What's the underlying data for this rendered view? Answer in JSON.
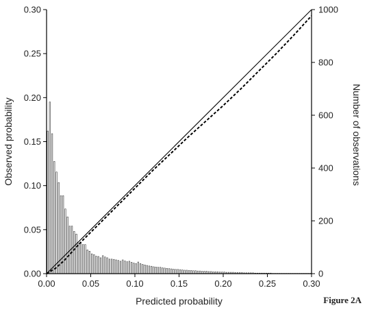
{
  "figure_label": "Figure 2A",
  "chart_data": {
    "type": "line",
    "title": "",
    "xlabel": "Predicted probability",
    "ylabel": "Observed probability",
    "y2label": "Number of observations",
    "xlim": [
      0,
      0.3
    ],
    "ylim": [
      0,
      0.3
    ],
    "y2lim": [
      0,
      1000
    ],
    "xticks": [
      0.0,
      0.05,
      0.1,
      0.15,
      0.2,
      0.25,
      0.3
    ],
    "xtick_labels": [
      "0.00",
      "0.05",
      "0.10",
      "0.15",
      "0.20",
      "0.25",
      "0.30"
    ],
    "yticks": [
      0.0,
      0.05,
      0.1,
      0.15,
      0.2,
      0.25,
      0.3
    ],
    "ytick_labels": [
      "0.00",
      "0.05",
      "0.10",
      "0.15",
      "0.20",
      "0.25",
      "0.30"
    ],
    "y2ticks": [
      0,
      200,
      400,
      600,
      800,
      1000
    ],
    "y2tick_labels": [
      "0",
      "200",
      "400",
      "600",
      "800",
      "1000"
    ],
    "grid": false,
    "legend": "none",
    "series": [
      {
        "style": "solid",
        "axis": "left",
        "x": [
          0.0,
          0.3
        ],
        "y": [
          0.0,
          0.3
        ]
      },
      {
        "style": "dashed",
        "axis": "left",
        "x": [
          0.0,
          0.01,
          0.02,
          0.03,
          0.04,
          0.05,
          0.06,
          0.08,
          0.1,
          0.12,
          0.14,
          0.16,
          0.18,
          0.2,
          0.22,
          0.24,
          0.26,
          0.28,
          0.3
        ],
        "y": [
          0.0,
          0.006,
          0.015,
          0.026,
          0.037,
          0.047,
          0.057,
          0.077,
          0.097,
          0.117,
          0.136,
          0.155,
          0.173,
          0.191,
          0.21,
          0.23,
          0.25,
          0.271,
          0.293
        ]
      }
    ],
    "histogram": {
      "axis": "right",
      "bin_width": 0.0025,
      "bin_starts": [
        0.0,
        0.0025,
        0.005,
        0.0075,
        0.01,
        0.0125,
        0.015,
        0.0175,
        0.02,
        0.0225,
        0.025,
        0.0275,
        0.03,
        0.0325,
        0.035,
        0.0375,
        0.04,
        0.0425,
        0.045,
        0.0475,
        0.05,
        0.0525,
        0.055,
        0.0575,
        0.06,
        0.0625,
        0.065,
        0.0675,
        0.07,
        0.0725,
        0.075,
        0.0775,
        0.08,
        0.0825,
        0.085,
        0.0875,
        0.09,
        0.0925,
        0.095,
        0.0975,
        0.1,
        0.1025,
        0.105,
        0.1075,
        0.11,
        0.1125,
        0.115,
        0.1175,
        0.12,
        0.1225,
        0.125,
        0.1275,
        0.13,
        0.1325,
        0.135,
        0.1375,
        0.14,
        0.1425,
        0.145,
        0.1475,
        0.15,
        0.1525,
        0.155,
        0.1575,
        0.16,
        0.1625,
        0.165,
        0.1675,
        0.17,
        0.1725,
        0.175,
        0.1775,
        0.18,
        0.1825,
        0.185,
        0.1875,
        0.19,
        0.1925,
        0.195,
        0.1975,
        0.2,
        0.2025,
        0.205,
        0.2075,
        0.21,
        0.2125,
        0.215,
        0.2175,
        0.22,
        0.2225,
        0.225,
        0.2275,
        0.23,
        0.2325,
        0.235,
        0.2375,
        0.24,
        0.2425,
        0.245,
        0.2475,
        0.25,
        0.2525,
        0.255,
        0.2575,
        0.26,
        0.2625,
        0.265,
        0.2675,
        0.27,
        0.2725,
        0.275,
        0.2775,
        0.28,
        0.2825,
        0.285,
        0.2875,
        0.29,
        0.2925,
        0.295,
        0.2975
      ],
      "counts": [
        540,
        650,
        530,
        425,
        385,
        345,
        295,
        295,
        245,
        215,
        180,
        180,
        160,
        150,
        115,
        115,
        110,
        110,
        90,
        85,
        75,
        72,
        66,
        65,
        60,
        68,
        63,
        60,
        55,
        55,
        54,
        52,
        50,
        47,
        52,
        48,
        45,
        47,
        43,
        40,
        38,
        44,
        38,
        35,
        33,
        31,
        29,
        28,
        26,
        25,
        24,
        24,
        22,
        21,
        20,
        19,
        18,
        17,
        16,
        16,
        15,
        14,
        13,
        13,
        12,
        12,
        11,
        11,
        10,
        10,
        9,
        9,
        9,
        8,
        8,
        7,
        7,
        7,
        6,
        6,
        6,
        5,
        5,
        5,
        5,
        4,
        4,
        4,
        4,
        3,
        3,
        3,
        3,
        3,
        2,
        2,
        2,
        2,
        2,
        2,
        2,
        2,
        1,
        1,
        1,
        1,
        1,
        1,
        1,
        1,
        1,
        1,
        1,
        1,
        1,
        1,
        1,
        1,
        1,
        1
      ]
    }
  }
}
